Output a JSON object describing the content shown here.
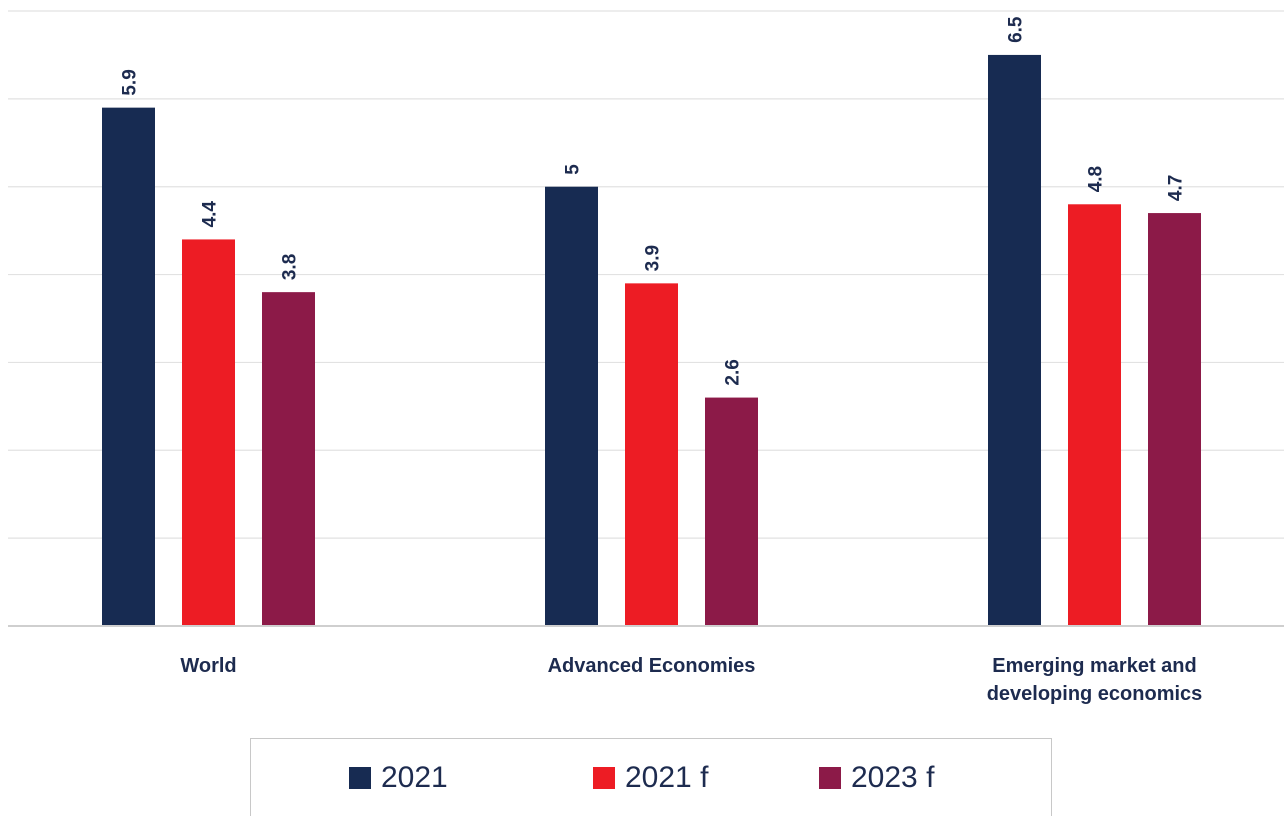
{
  "chart_data": {
    "type": "bar",
    "title": "",
    "xlabel": "",
    "ylabel": "",
    "ylim": [
      0,
      7
    ],
    "grid": true,
    "legend_position": "bottom",
    "categories": [
      "World",
      "Advanced Economies",
      "Emerging market and developing economics"
    ],
    "category_label_lines": [
      [
        "World"
      ],
      [
        "Advanced Economies"
      ],
      [
        "Emerging market and",
        "developing economics"
      ]
    ],
    "series": [
      {
        "name": "2021",
        "color": "#172b52",
        "values": [
          5.9,
          5,
          6.5
        ],
        "labels": [
          "5.9",
          "5",
          "6.5"
        ]
      },
      {
        "name": "2021 f",
        "color": "#ed1c24",
        "values": [
          4.4,
          3.9,
          4.8
        ],
        "labels": [
          "4.4",
          "3.9",
          "4.8"
        ]
      },
      {
        "name": "2023 f",
        "color": "#8c1a48",
        "values": [
          3.8,
          2.6,
          4.7
        ],
        "labels": [
          "3.8",
          "2.6",
          "4.7"
        ]
      }
    ]
  }
}
